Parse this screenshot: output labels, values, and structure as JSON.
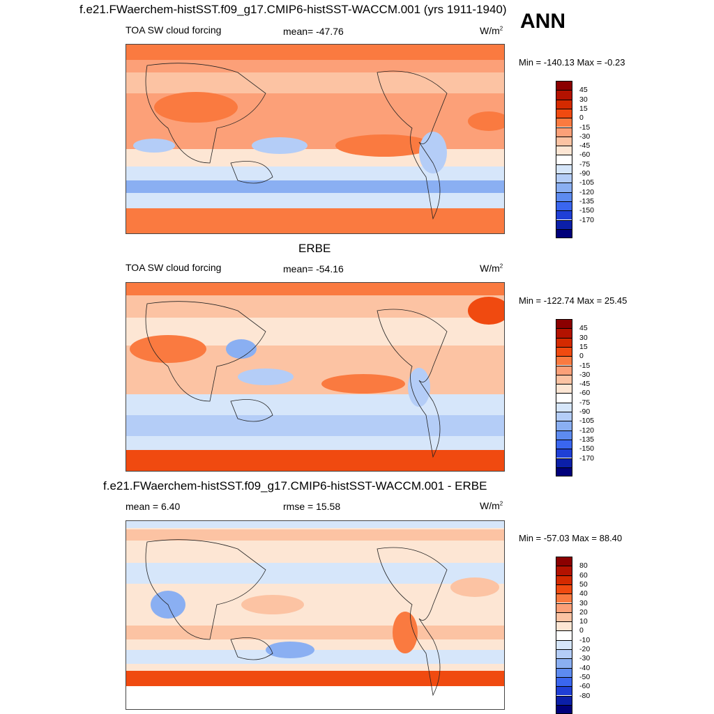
{
  "header": {
    "title": "f.e21.FWaerchem-histSST.f09_g17.CMIP6-histSST-WACCM.001 (yrs 1911-1940)",
    "season": "ANN"
  },
  "panels": [
    {
      "id": "model",
      "heading": "",
      "left_label": "TOA SW cloud forcing",
      "center_label": "mean= -47.76",
      "units": "W/m",
      "units_sup": "2",
      "minmax": "Min = -140.13 Max =  -0.23"
    },
    {
      "id": "obs",
      "heading": "ERBE",
      "left_label": "TOA SW cloud forcing",
      "center_label": "mean= -54.16",
      "units": "W/m",
      "units_sup": "2",
      "minmax": "Min = -122.74 Max =  25.45"
    },
    {
      "id": "diff",
      "heading": "f.e21.FWaerchem-histSST.f09_g17.CMIP6-histSST-WACCM.001 - ERBE",
      "left_label": "mean =   6.40",
      "center_label": "rmse =  15.58",
      "units": "W/m",
      "units_sup": "2",
      "minmax": "Min = -57.03 Max =  88.40"
    }
  ],
  "colorbars": {
    "abs": {
      "ticks": [
        "45",
        "30",
        "15",
        "0",
        "-15",
        "-30",
        "-45",
        "-60",
        "-75",
        "-90",
        "-105",
        "-120",
        "-135",
        "-150",
        "-170"
      ],
      "colors": [
        "#8b0000",
        "#b31200",
        "#d42a00",
        "#f04a10",
        "#fa7a40",
        "#fca078",
        "#fcc3a3",
        "#fde6d4",
        "#ffffff",
        "#d6e6fa",
        "#b4cdf7",
        "#8aaff2",
        "#5d8bf0",
        "#3a66ef",
        "#1f3fd6",
        "#0b1fa8",
        "#00007a"
      ]
    },
    "diff": {
      "ticks": [
        "80",
        "60",
        "50",
        "40",
        "30",
        "20",
        "10",
        "0",
        "-10",
        "-20",
        "-30",
        "-40",
        "-50",
        "-60",
        "-80"
      ],
      "colors": [
        "#8b0000",
        "#b31200",
        "#d42a00",
        "#f04a10",
        "#fa7a40",
        "#fca078",
        "#fcc3a3",
        "#fde6d4",
        "#ffffff",
        "#d6e6fa",
        "#b4cdf7",
        "#8aaff2",
        "#5d8bf0",
        "#3a66ef",
        "#1f3fd6",
        "#0b1fa8",
        "#00007a"
      ]
    }
  },
  "chart_data": [
    {
      "type": "heatmap",
      "title": "f.e21.FWaerchem-histSST.f09_g17.CMIP6-histSST-WACCM.001 (yrs 1911-1940)",
      "variable": "TOA SW cloud forcing",
      "season": "ANN",
      "units": "W/m2",
      "mean": -47.76,
      "min": -140.13,
      "max": -0.23,
      "levels": [
        -170,
        -150,
        -135,
        -120,
        -105,
        -90,
        -75,
        -60,
        -45,
        -30,
        -15,
        0,
        15,
        30,
        45
      ]
    },
    {
      "type": "heatmap",
      "title": "ERBE",
      "variable": "TOA SW cloud forcing",
      "units": "W/m2",
      "mean": -54.16,
      "min": -122.74,
      "max": 25.45,
      "levels": [
        -170,
        -150,
        -135,
        -120,
        -105,
        -90,
        -75,
        -60,
        -45,
        -30,
        -15,
        0,
        15,
        30,
        45
      ]
    },
    {
      "type": "heatmap",
      "title": "f.e21.FWaerchem-histSST.f09_g17.CMIP6-histSST-WACCM.001 - ERBE",
      "units": "W/m2",
      "mean": 6.4,
      "rmse": 15.58,
      "min": -57.03,
      "max": 88.4,
      "levels": [
        -80,
        -60,
        -50,
        -40,
        -30,
        -20,
        -10,
        0,
        10,
        20,
        30,
        40,
        50,
        60,
        80
      ]
    }
  ]
}
